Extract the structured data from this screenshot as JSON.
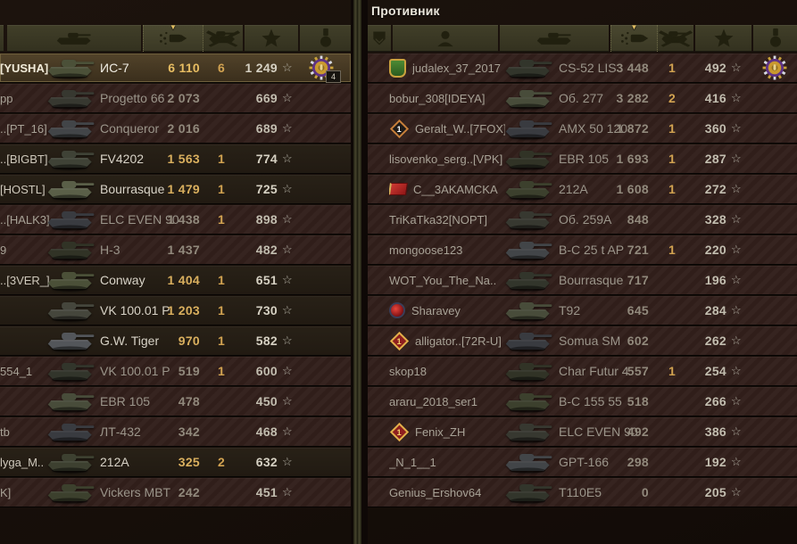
{
  "enemy_panel": {
    "title": "Противник"
  },
  "icons": {
    "xp_star_glyph": "☆",
    "sort_arrow_glyph": "▼",
    "header_left": [
      "tank-icon",
      "damage-icon",
      "kills-icon",
      "xp-star-icon",
      "medal-icon"
    ],
    "header_right": [
      "rank-icon",
      "player-icon",
      "tank-icon",
      "damage-icon",
      "kills-icon",
      "xp-star-icon",
      "medal-icon"
    ],
    "sorted_column": "damage"
  },
  "colors": {
    "gold_number": "#d9af5e",
    "dead_number": "#91897c",
    "header_olive": "#3c3a26",
    "dead_row": "#32201c",
    "alive_row": "#251e15",
    "self_row_highlight": "#52432a"
  },
  "allies": {
    "rows": [
      {
        "name": "[YUSHA]",
        "tank": "ИС-7",
        "damage": "6 110",
        "kills": "6",
        "xp": "1 249",
        "state": "self",
        "medal": true,
        "medal_count": "4"
      },
      {
        "name": "pp",
        "tank": "Progetto 66",
        "damage": "2 073",
        "kills": "",
        "xp": "669",
        "state": "dead"
      },
      {
        "name": "..[PT_16]",
        "tank": "Conqueror",
        "damage": "2 016",
        "kills": "",
        "xp": "689",
        "state": "dead"
      },
      {
        "name": "..[BIGBT]",
        "tank": "FV4202",
        "damage": "1 563",
        "kills": "1",
        "xp": "774",
        "state": "alive"
      },
      {
        "name": "[HOSTL]",
        "tank": "Bourrasque",
        "damage": "1 479",
        "kills": "1",
        "xp": "725",
        "state": "alive"
      },
      {
        "name": "..[HALK3]",
        "tank": "ELC EVEN 90",
        "damage": "1 438",
        "kills": "1",
        "xp": "898",
        "state": "dead"
      },
      {
        "name": "9",
        "tank": "H-3",
        "damage": "1 437",
        "kills": "",
        "xp": "482",
        "state": "dead"
      },
      {
        "name": "..[3VER_]",
        "tank": "Conway",
        "damage": "1 404",
        "kills": "1",
        "xp": "651",
        "state": "alive"
      },
      {
        "name": "",
        "tank": "VK 100.01 P",
        "damage": "1 203",
        "kills": "1",
        "xp": "730",
        "state": "alive"
      },
      {
        "name": "",
        "tank": "G.W. Tiger",
        "damage": "970",
        "kills": "1",
        "xp": "582",
        "state": "alive"
      },
      {
        "name": "554_1",
        "tank": "VK 100.01 P",
        "damage": "519",
        "kills": "1",
        "xp": "600",
        "state": "dead"
      },
      {
        "name": "",
        "tank": "EBR 105",
        "damage": "478",
        "kills": "",
        "xp": "450",
        "state": "dead"
      },
      {
        "name": "tb",
        "tank": "ЛТ-432",
        "damage": "342",
        "kills": "",
        "xp": "468",
        "state": "dead"
      },
      {
        "name": "lyga_M..",
        "tank": "212A",
        "damage": "325",
        "kills": "2",
        "xp": "632",
        "state": "alive"
      },
      {
        "name": "K]",
        "tank": "Vickers MBT",
        "damage": "242",
        "kills": "",
        "xp": "451",
        "state": "dead"
      }
    ]
  },
  "enemies": {
    "rows": [
      {
        "name": "judalex_37_2017",
        "badge": {
          "type": "clan-shield"
        },
        "tank": "CS-52 LIS",
        "damage": "3 448",
        "kills": "1",
        "xp": "492",
        "state": "dead",
        "medal": true
      },
      {
        "name": "bobur_308[IDEYA]",
        "tank": "Об. 277",
        "damage": "3 282",
        "kills": "2",
        "xp": "416",
        "state": "dead"
      },
      {
        "name": "Geralt_W..[7FOX]",
        "badge": {
          "type": "bronze-diamond",
          "num": "1"
        },
        "tank": "AMX 50 120",
        "damage": "1 872",
        "kills": "1",
        "xp": "360",
        "state": "dead"
      },
      {
        "name": "lisovenko_serg..[VPK]",
        "tank": "EBR 105",
        "damage": "1 693",
        "kills": "1",
        "xp": "287",
        "state": "dead"
      },
      {
        "name": "C__3AKAMCKA",
        "badge": {
          "type": "red-flag"
        },
        "tank": "212A",
        "damage": "1 608",
        "kills": "1",
        "xp": "272",
        "state": "dead"
      },
      {
        "name": "TriKaTka32[NOPT]",
        "tank": "Об. 259A",
        "damage": "848",
        "kills": "",
        "xp": "328",
        "state": "dead"
      },
      {
        "name": "mongoose123",
        "tank": "B-C 25 t AP",
        "damage": "721",
        "kills": "1",
        "xp": "220",
        "state": "dead"
      },
      {
        "name": "WOT_You_The_Na..",
        "tank": "Bourrasque",
        "damage": "717",
        "kills": "",
        "xp": "196",
        "state": "dead"
      },
      {
        "name": "Sharavey",
        "badge": {
          "type": "red-round"
        },
        "tank": "T92",
        "damage": "645",
        "kills": "",
        "xp": "284",
        "state": "dead"
      },
      {
        "name": "alligator..[72R-U]",
        "badge": {
          "type": "red-diamond",
          "num": "1"
        },
        "tank": "Somua SM",
        "damage": "602",
        "kills": "",
        "xp": "262",
        "state": "dead"
      },
      {
        "name": "skop18",
        "tank": "Char Futur 4",
        "damage": "557",
        "kills": "1",
        "xp": "254",
        "state": "dead"
      },
      {
        "name": "araru_2018_ser1",
        "tank": "B-C 155 55",
        "damage": "518",
        "kills": "",
        "xp": "266",
        "state": "dead"
      },
      {
        "name": "Fenix_ZH",
        "badge": {
          "type": "red-diamond",
          "num": "1"
        },
        "tank": "ELC EVEN 90",
        "damage": "492",
        "kills": "",
        "xp": "386",
        "state": "dead"
      },
      {
        "name": "_N_1__1",
        "tank": "GPT-166",
        "damage": "298",
        "kills": "",
        "xp": "192",
        "state": "dead"
      },
      {
        "name": "Genius_Ershov64",
        "tank": "T110E5",
        "damage": "0",
        "kills": "",
        "xp": "205",
        "state": "dead"
      }
    ]
  }
}
